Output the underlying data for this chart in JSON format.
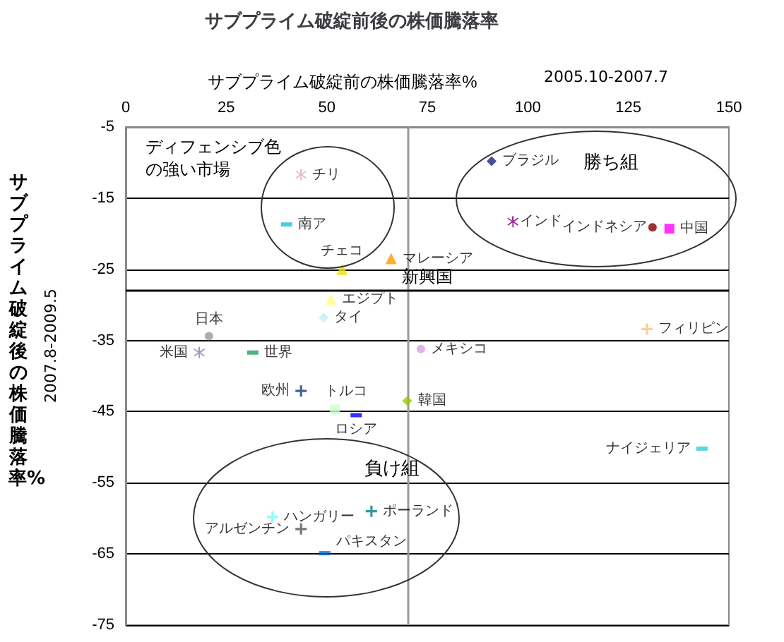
{
  "chart_data": {
    "type": "scatter",
    "title": "サブプライム破綻前後の株価騰落率",
    "xlabel": "サブプライム破綻前の株価騰落率%",
    "ylabel": "サブプライム破綻後の株価騰落率%",
    "annotations": [
      "2005.10-2007.7",
      "2007.8-2009.5",
      "ディフェンシブ色の強い市場",
      "勝ち組",
      "負け組"
    ],
    "xlim": [
      0,
      150
    ],
    "xticks": [
      0,
      25,
      50,
      75,
      100,
      125,
      150
    ],
    "ylim": [
      -75,
      -5
    ],
    "yticks": [
      -75,
      -65,
      -55,
      -45,
      -35,
      -25,
      -15,
      -5
    ],
    "grid": "y",
    "legend": false,
    "ref_lines": [
      {
        "axis": "x",
        "value": 70,
        "label": null,
        "color": "#999999"
      },
      {
        "axis": "y",
        "value": -28,
        "label": "新興国",
        "color": "#000000"
      }
    ],
    "series": [
      {
        "name": "チリ",
        "color": "#e8a0c8",
        "marker": "star",
        "x": [
          43.6
        ],
        "values": [
          -11.7
        ]
      },
      {
        "name": "南ア",
        "color": "#20c0d8",
        "x": [
          40
        ],
        "values": [
          -18.7
        ]
      },
      {
        "name": "チェコ",
        "color": "#f0e000",
        "marker": "triangle",
        "x": [
          53.8
        ],
        "values": [
          -25
        ]
      },
      {
        "name": "マレーシア",
        "color": "#ff9900",
        "marker": "triangle",
        "x": [
          66
        ],
        "values": [
          -23.5
        ]
      },
      {
        "name": "エジプト",
        "color": "#ffff80",
        "marker": "triangle",
        "x": [
          51
        ],
        "values": [
          -29.2
        ]
      },
      {
        "name": "タイ",
        "color": "#c0f0f8",
        "marker": "diamond",
        "x": [
          49.2
        ],
        "values": [
          -31.8
        ]
      },
      {
        "name": "日本",
        "color": "#999999",
        "marker": "circle",
        "x": [
          20.7
        ],
        "values": [
          -34.4
        ]
      },
      {
        "name": "米国",
        "color": "#8080b0",
        "marker": "star",
        "x": [
          18.3
        ],
        "values": [
          -36.7
        ]
      },
      {
        "name": "世界",
        "color": "#20a060",
        "x": [
          31.6
        ],
        "values": [
          -36.7
        ]
      },
      {
        "name": "ブラジル",
        "color": "#1a237e",
        "marker": "diamond",
        "x": [
          91
        ],
        "values": [
          -9.8
        ]
      },
      {
        "name": "インド",
        "color": "#800080",
        "marker": "star",
        "x": [
          96.3
        ],
        "values": [
          -18.3
        ]
      },
      {
        "name": "インドネシア",
        "color": "#800000",
        "marker": "circle",
        "x": [
          131
        ],
        "values": [
          -19.1
        ]
      },
      {
        "name": "中国",
        "color": "#ff00ff",
        "marker": "square",
        "x": [
          135.2
        ],
        "values": [
          -19.3
        ]
      },
      {
        "name": "フィリピン",
        "color": "#ffc080",
        "marker": "cross",
        "x": [
          129.6
        ],
        "values": [
          -33.4
        ]
      },
      {
        "name": "メキシコ",
        "color": "#d8a0e8",
        "marker": "circle",
        "x": [
          73.4
        ],
        "values": [
          -36.2
        ]
      },
      {
        "name": "欧州",
        "color": "#1a3a7e",
        "marker": "cross",
        "x": [
          43.6
        ],
        "values": [
          -42.1
        ]
      },
      {
        "name": "トルコ",
        "color": "#ccffcc",
        "marker": "square",
        "x": [
          52
        ],
        "values": [
          -44.7
        ]
      },
      {
        "name": "ロシア",
        "color": "#0000ff",
        "x": [
          57.3
        ],
        "values": [
          -45.5
        ]
      },
      {
        "name": "韓国",
        "color": "#99cc00",
        "marker": "diamond",
        "x": [
          70
        ],
        "values": [
          -43.5
        ]
      },
      {
        "name": "ナイジェリア",
        "color": "#33ccdd",
        "x": [
          143.3
        ],
        "values": [
          -50.2
        ]
      },
      {
        "name": "ハンガリー",
        "color": "#66ffff",
        "marker": "cross",
        "x": [
          36.5
        ],
        "values": [
          -59.8
        ]
      },
      {
        "name": "アルゼンチン",
        "color": "#555555",
        "marker": "cross",
        "x": [
          43.6
        ],
        "values": [
          -61.5
        ]
      },
      {
        "name": "ポーランド",
        "color": "#008080",
        "marker": "cross",
        "x": [
          61.1
        ],
        "values": [
          -59
        ]
      },
      {
        "name": "パキスタン",
        "color": "#0066cc",
        "x": [
          49.5
        ],
        "values": [
          -64.9
        ]
      }
    ]
  }
}
